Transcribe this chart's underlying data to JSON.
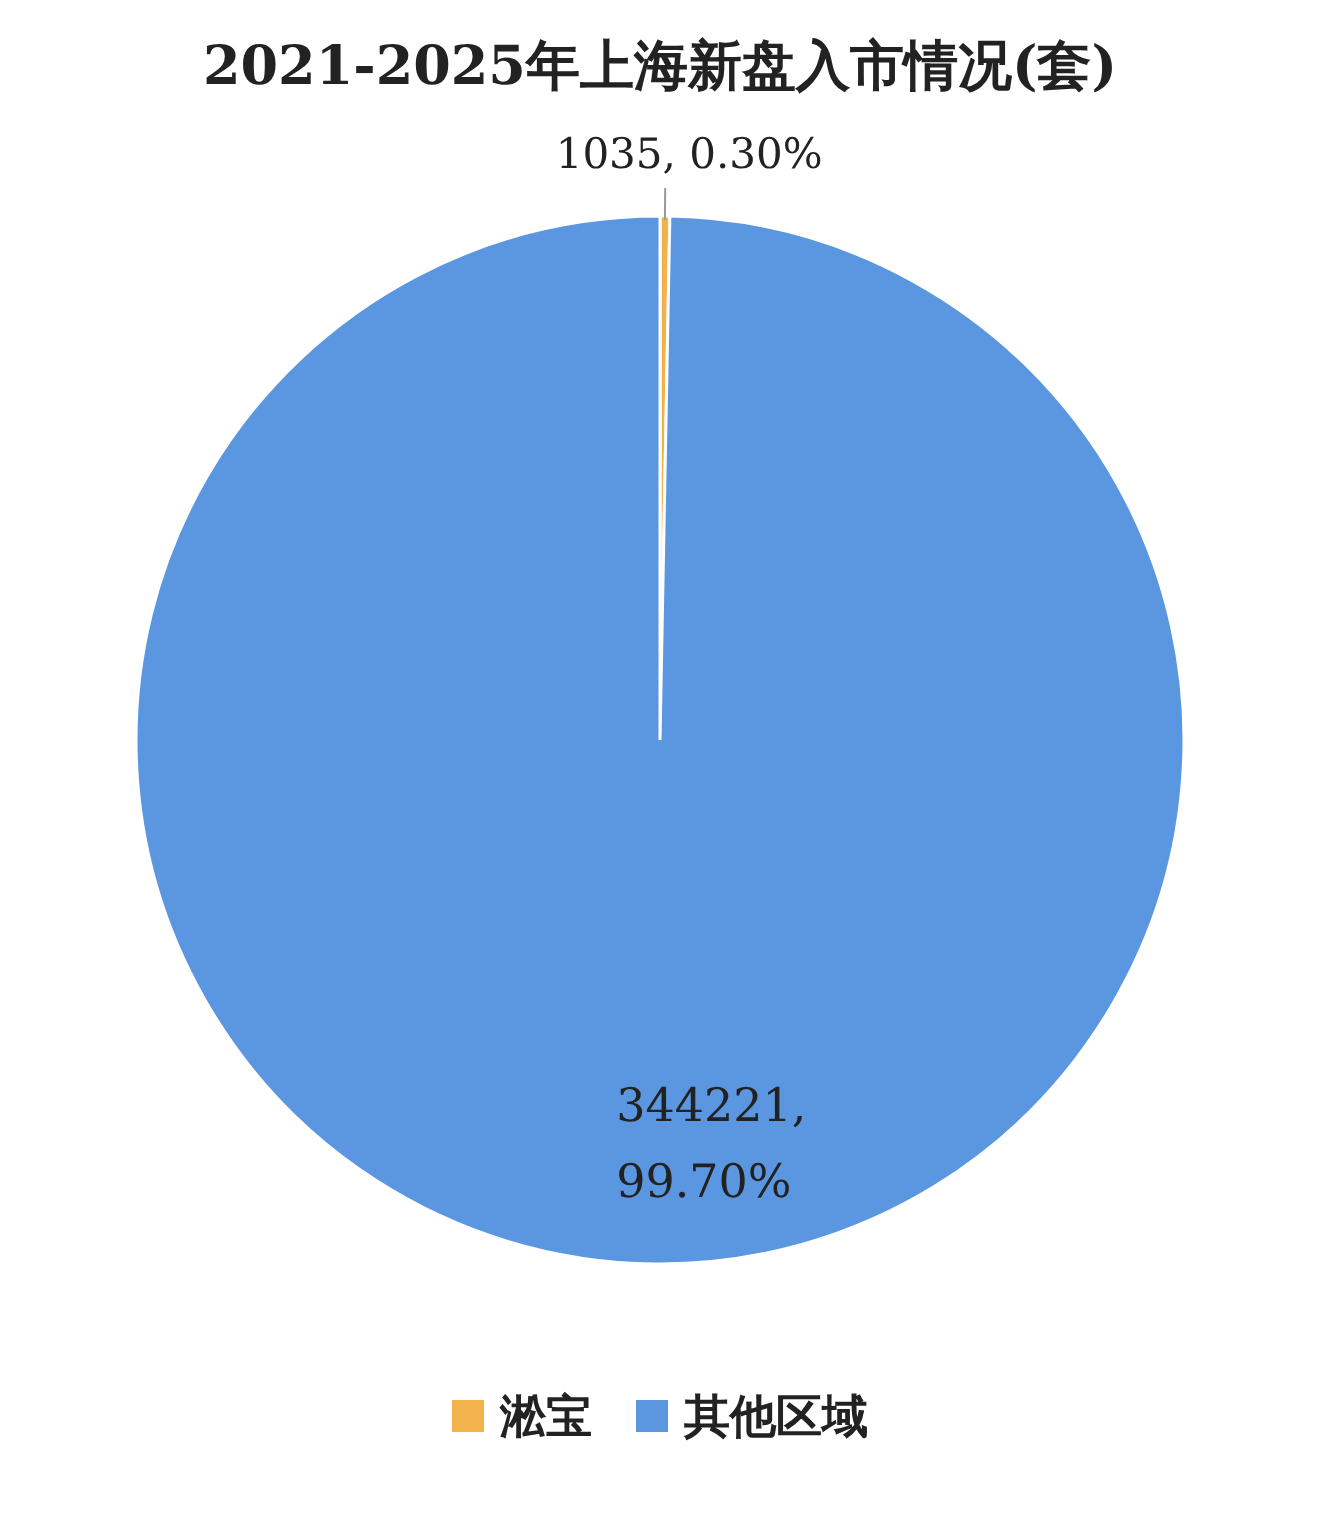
{
  "chart_data": {
    "type": "pie",
    "title": "2021-2025年上海新盘入市情况(套)",
    "categories": [
      "淞宝",
      "其他区域"
    ],
    "values": [
      1035,
      344221
    ],
    "colors": [
      "#f2b24c",
      "#5b97e1"
    ],
    "value_labels": [
      "1035, 0.30%",
      "344221, 99.70%"
    ],
    "legend": "bottom"
  }
}
